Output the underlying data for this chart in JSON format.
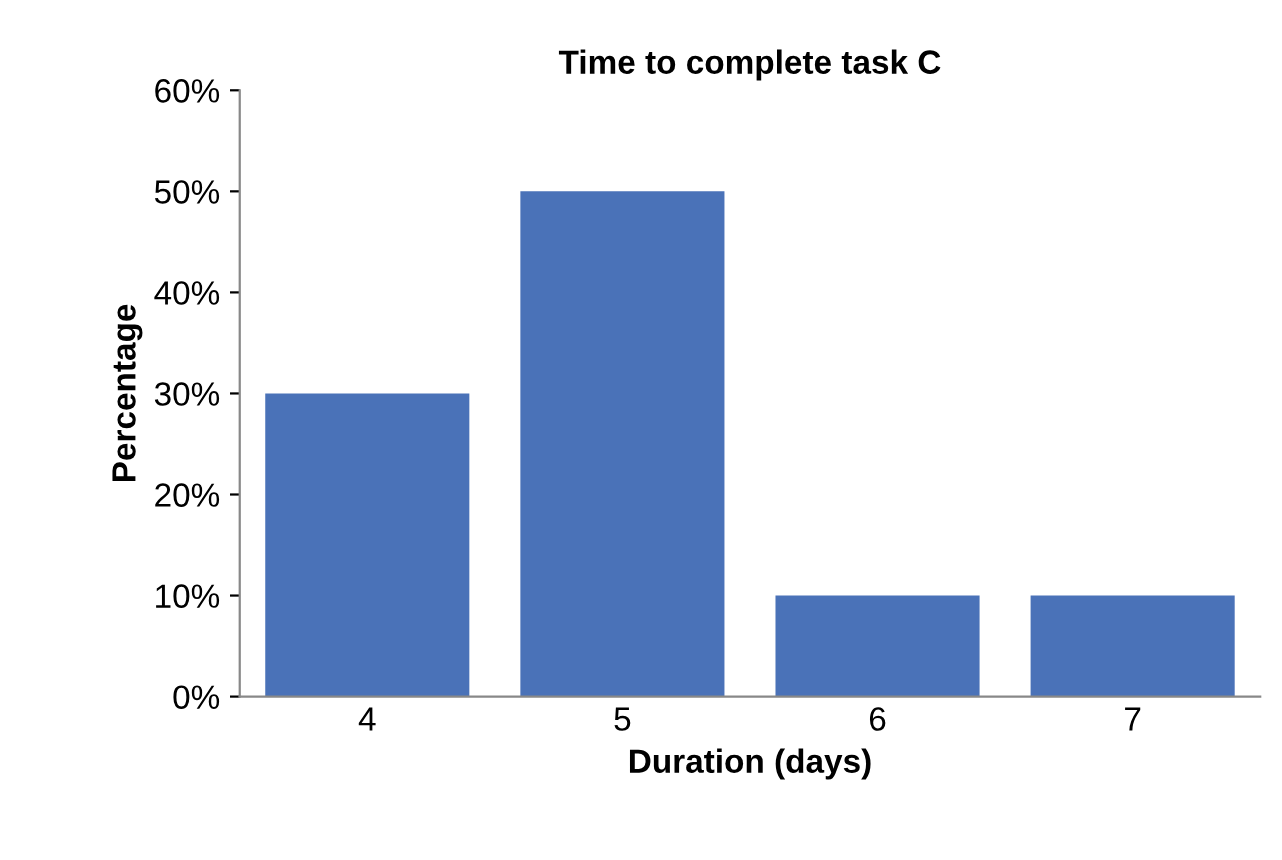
{
  "chart_data": {
    "type": "bar",
    "title": "Time to complete task C",
    "xlabel": "Duration (days)",
    "ylabel": "Percentage",
    "categories": [
      "4",
      "5",
      "6",
      "7"
    ],
    "values": [
      30,
      50,
      10,
      10
    ],
    "color": "#4a72b8",
    "ylim": [
      0,
      60
    ],
    "yticks": [
      {
        "value": 0,
        "label": "0%"
      },
      {
        "value": 10,
        "label": "10%"
      },
      {
        "value": 20,
        "label": "20%"
      },
      {
        "value": 30,
        "label": "30%"
      },
      {
        "value": 40,
        "label": "40%"
      },
      {
        "value": 50,
        "label": "50%"
      },
      {
        "value": 60,
        "label": "60%"
      }
    ],
    "grid": false
  }
}
